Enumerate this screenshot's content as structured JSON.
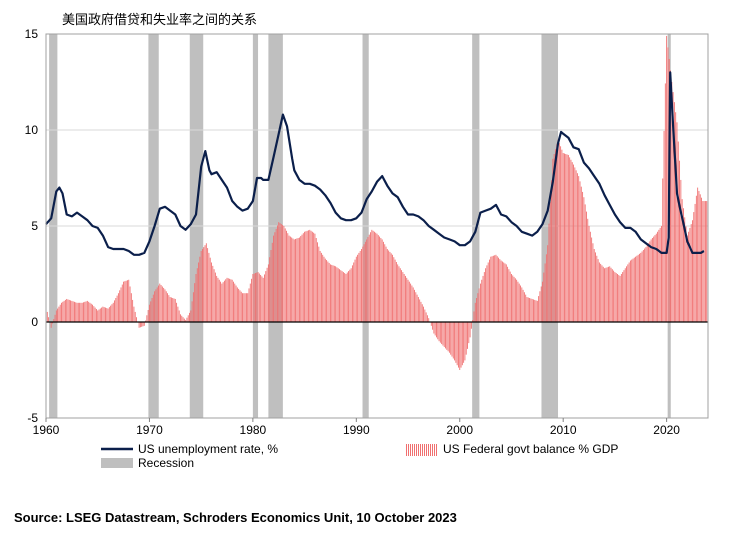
{
  "chart_data": {
    "type": "line",
    "title": "美国政府借贷和失业率之间的关系",
    "xlabel": "",
    "ylabel": "",
    "xlim": [
      1960,
      2024
    ],
    "ylim": [
      -5,
      15
    ],
    "x_ticks": [
      1960,
      1970,
      1980,
      1990,
      2000,
      2010,
      2020
    ],
    "y_ticks": [
      -5,
      0,
      5,
      10,
      15
    ],
    "x_tick_labels": [
      "1960",
      "1970",
      "1980",
      "1990",
      "2000",
      "2010",
      "2020"
    ],
    "y_tick_labels": [
      "-5",
      "0",
      "5",
      "10",
      "15"
    ],
    "grid": "horizontal",
    "legend_position": "bottom",
    "colors": {
      "unemployment": "#0b1f4b",
      "balance": "#f07070",
      "recession": "#bfbfbf",
      "zero_line": "#000000"
    },
    "recessions": [
      [
        1960.3,
        1961.1
      ],
      [
        1969.9,
        1970.9
      ],
      [
        1973.9,
        1975.2
      ],
      [
        1980.0,
        1980.5
      ],
      [
        1981.5,
        1982.9
      ],
      [
        1990.6,
        1991.2
      ],
      [
        2001.2,
        2001.9
      ],
      [
        2007.9,
        2009.5
      ],
      [
        2020.1,
        2020.4
      ]
    ],
    "series": [
      {
        "name": "US unemployment rate, %",
        "type": "line",
        "x": [
          1960,
          1960.5,
          1961,
          1961.3,
          1961.6,
          1962,
          1962.5,
          1963,
          1963.5,
          1964,
          1964.5,
          1965,
          1965.5,
          1966,
          1966.5,
          1967,
          1967.5,
          1968,
          1968.5,
          1969,
          1969.5,
          1970,
          1970.5,
          1971,
          1971.5,
          1972,
          1972.5,
          1973,
          1973.5,
          1974,
          1974.5,
          1975,
          1975.4,
          1975.8,
          1976,
          1976.5,
          1977,
          1977.5,
          1978,
          1978.5,
          1979,
          1979.5,
          1980,
          1980.4,
          1980.8,
          1981,
          1981.5,
          1982,
          1982.5,
          1982.9,
          1983.3,
          1983.8,
          1984,
          1984.5,
          1985,
          1985.5,
          1986,
          1986.5,
          1987,
          1987.5,
          1988,
          1988.5,
          1989,
          1989.5,
          1990,
          1990.5,
          1991,
          1991.5,
          1992,
          1992.5,
          1993,
          1993.5,
          1994,
          1994.5,
          1995,
          1995.5,
          1996,
          1996.5,
          1997,
          1997.5,
          1998,
          1998.5,
          1999,
          1999.5,
          2000,
          2000.5,
          2001,
          2001.5,
          2002,
          2002.5,
          2003,
          2003.5,
          2004,
          2004.5,
          2005,
          2005.5,
          2006,
          2006.5,
          2007,
          2007.5,
          2008,
          2008.5,
          2009,
          2009.5,
          2009.8,
          2010,
          2010.5,
          2011,
          2011.5,
          2012,
          2012.5,
          2013,
          2013.5,
          2014,
          2014.5,
          2015,
          2015.5,
          2016,
          2016.5,
          2017,
          2017.5,
          2018,
          2018.5,
          2019,
          2019.5,
          2020,
          2020.2,
          2020.35,
          2020.6,
          2021,
          2021.3,
          2021.6,
          2022,
          2022.5,
          2023,
          2023.3,
          2023.6
        ],
        "y": [
          5.1,
          5.4,
          6.8,
          7.0,
          6.7,
          5.6,
          5.5,
          5.7,
          5.5,
          5.3,
          5.0,
          4.9,
          4.5,
          3.9,
          3.8,
          3.8,
          3.8,
          3.7,
          3.5,
          3.5,
          3.6,
          4.2,
          5.0,
          5.9,
          6.0,
          5.8,
          5.6,
          5.0,
          4.8,
          5.1,
          5.6,
          8.1,
          8.9,
          7.9,
          7.7,
          7.8,
          7.4,
          7.0,
          6.3,
          6.0,
          5.8,
          5.9,
          6.3,
          7.5,
          7.5,
          7.4,
          7.4,
          8.6,
          9.8,
          10.8,
          10.2,
          8.5,
          7.9,
          7.4,
          7.2,
          7.2,
          7.1,
          6.9,
          6.6,
          6.2,
          5.7,
          5.4,
          5.3,
          5.3,
          5.4,
          5.7,
          6.4,
          6.8,
          7.3,
          7.6,
          7.1,
          6.7,
          6.5,
          6.0,
          5.6,
          5.6,
          5.5,
          5.3,
          5.0,
          4.8,
          4.6,
          4.4,
          4.3,
          4.2,
          4.0,
          4.0,
          4.2,
          4.7,
          5.7,
          5.8,
          5.9,
          6.1,
          5.6,
          5.5,
          5.2,
          5.0,
          4.7,
          4.6,
          4.5,
          4.7,
          5.1,
          5.8,
          7.3,
          9.3,
          9.9,
          9.8,
          9.6,
          9.1,
          9.0,
          8.3,
          8.0,
          7.6,
          7.2,
          6.6,
          6.1,
          5.6,
          5.2,
          4.9,
          4.9,
          4.7,
          4.3,
          4.1,
          3.9,
          3.8,
          3.6,
          3.6,
          4.4,
          13.0,
          10.5,
          6.7,
          5.9,
          5.2,
          4.2,
          3.6,
          3.6,
          3.6,
          3.7
        ]
      },
      {
        "name": "US Federal govt balance % GDP",
        "type": "bar",
        "x": [
          1960,
          1960.5,
          1961,
          1961.5,
          1962,
          1962.5,
          1963,
          1963.5,
          1964,
          1964.5,
          1965,
          1965.5,
          1966,
          1966.5,
          1967,
          1967.5,
          1968,
          1968.5,
          1969,
          1969.5,
          1970,
          1970.5,
          1971,
          1971.5,
          1972,
          1972.5,
          1973,
          1973.5,
          1974,
          1974.5,
          1975,
          1975.5,
          1976,
          1976.5,
          1977,
          1977.5,
          1978,
          1978.5,
          1979,
          1979.5,
          1980,
          1980.5,
          1981,
          1981.5,
          1982,
          1982.5,
          1983,
          1983.5,
          1984,
          1984.5,
          1985,
          1985.5,
          1986,
          1986.5,
          1987,
          1987.5,
          1988,
          1988.5,
          1989,
          1989.5,
          1990,
          1990.5,
          1991,
          1991.5,
          1992,
          1992.5,
          1993,
          1993.5,
          1994,
          1994.5,
          1995,
          1995.5,
          1996,
          1996.5,
          1997,
          1997.5,
          1998,
          1998.5,
          1999,
          1999.5,
          2000,
          2000.5,
          2001,
          2001.5,
          2002,
          2002.5,
          2003,
          2003.5,
          2004,
          2004.5,
          2005,
          2005.5,
          2006,
          2006.5,
          2007,
          2007.5,
          2008,
          2008.5,
          2009,
          2009.5,
          2010,
          2010.5,
          2011,
          2011.5,
          2012,
          2012.5,
          2013,
          2013.5,
          2014,
          2014.5,
          2015,
          2015.5,
          2016,
          2016.5,
          2017,
          2017.5,
          2018,
          2018.5,
          2019,
          2019.5,
          2020,
          2020.5,
          2021,
          2021.5,
          2022,
          2022.5,
          2023,
          2023.5
        ],
        "y": [
          0.8,
          -0.3,
          0.6,
          1.0,
          1.2,
          1.1,
          1.0,
          1.0,
          1.1,
          0.9,
          0.6,
          0.8,
          0.7,
          1.0,
          1.5,
          2.1,
          2.2,
          0.8,
          -0.3,
          -0.2,
          0.9,
          1.6,
          2.0,
          1.7,
          1.3,
          1.2,
          0.4,
          0.1,
          0.6,
          2.5,
          3.7,
          4.1,
          3.1,
          2.4,
          2.0,
          2.3,
          2.2,
          1.8,
          1.5,
          1.5,
          2.5,
          2.6,
          2.3,
          3.0,
          4.5,
          5.2,
          5.0,
          4.5,
          4.3,
          4.4,
          4.7,
          4.8,
          4.6,
          3.7,
          3.3,
          3.0,
          2.9,
          2.7,
          2.5,
          2.8,
          3.4,
          3.8,
          4.3,
          4.8,
          4.6,
          4.3,
          3.8,
          3.5,
          3.0,
          2.6,
          2.2,
          1.8,
          1.3,
          0.8,
          0.2,
          -0.6,
          -1.0,
          -1.3,
          -1.6,
          -2.0,
          -2.5,
          -2.0,
          -0.8,
          1.0,
          2.0,
          2.8,
          3.4,
          3.5,
          3.2,
          3.0,
          2.5,
          2.2,
          1.8,
          1.3,
          1.2,
          1.1,
          2.1,
          4.0,
          8.5,
          9.5,
          8.8,
          8.7,
          8.2,
          7.6,
          6.5,
          5.0,
          3.8,
          3.1,
          2.8,
          2.9,
          2.6,
          2.4,
          2.8,
          3.2,
          3.4,
          3.6,
          3.9,
          4.3,
          4.6,
          5.0,
          14.9,
          12.5,
          10.4,
          6.4,
          4.5,
          5.3,
          7.0,
          6.3
        ]
      }
    ]
  },
  "legend": {
    "unemployment_label": "US unemployment rate, %",
    "balance_label": "US Federal govt balance % GDP",
    "recession_label": "Recession"
  },
  "source_note": "Source: LSEG Datastream, Schroders Economics Unit, 10 October 2023"
}
